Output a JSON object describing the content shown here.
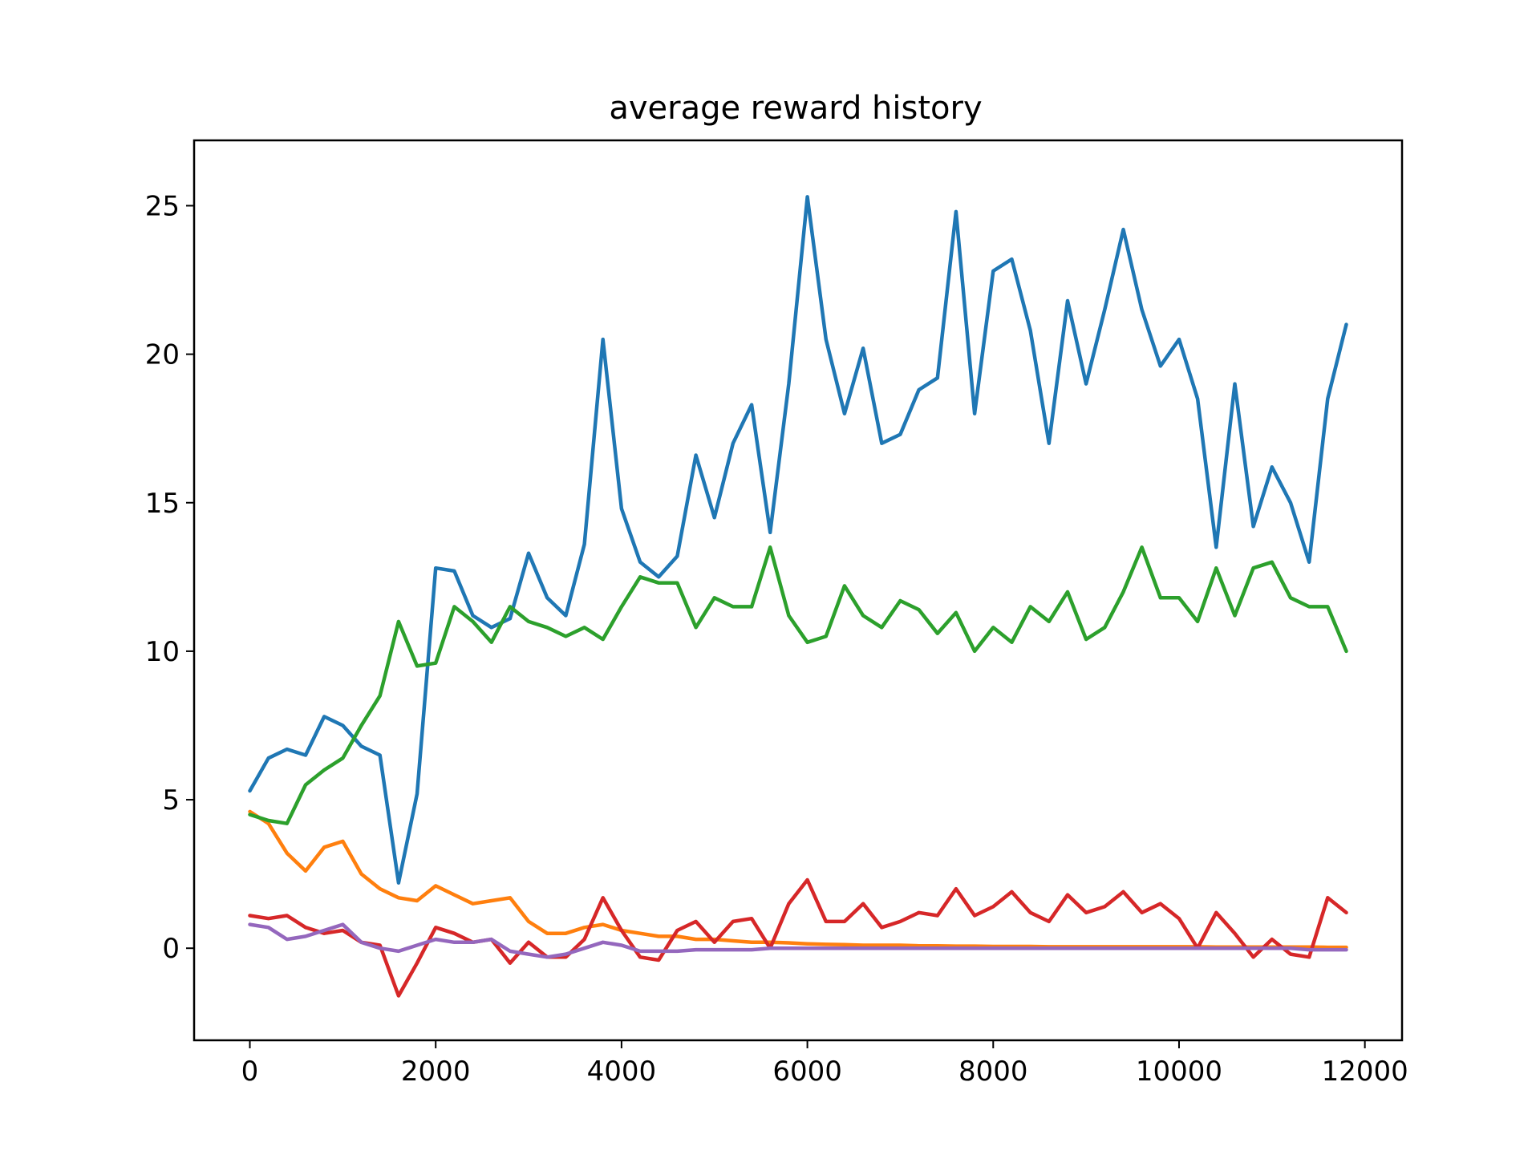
{
  "chart_data": {
    "type": "line",
    "title": "average reward history",
    "xlabel": "",
    "ylabel": "",
    "xlim": [
      -600,
      12400
    ],
    "ylim": [
      -3.1,
      27.2
    ],
    "grid": false,
    "x_ticks": [
      0,
      2000,
      4000,
      6000,
      8000,
      10000,
      12000
    ],
    "x_tick_labels": [
      "0",
      "2000",
      "4000",
      "6000",
      "8000",
      "10000",
      "12000"
    ],
    "y_ticks": [
      0,
      5,
      10,
      15,
      20,
      25
    ],
    "y_tick_labels": [
      "0",
      "5",
      "10",
      "15",
      "20",
      "25"
    ],
    "x": [
      0,
      200,
      400,
      600,
      800,
      1000,
      1200,
      1400,
      1600,
      1800,
      2000,
      2200,
      2400,
      2600,
      2800,
      3000,
      3200,
      3400,
      3600,
      3800,
      4000,
      4200,
      4400,
      4600,
      4800,
      5000,
      5200,
      5400,
      5600,
      5800,
      6000,
      6200,
      6400,
      6600,
      6800,
      7000,
      7200,
      7400,
      7600,
      7800,
      8000,
      8200,
      8400,
      8600,
      8800,
      9000,
      9200,
      9400,
      9600,
      9800,
      10000,
      10200,
      10400,
      10600,
      10800,
      11000,
      11200,
      11400,
      11600,
      11800
    ],
    "series": [
      {
        "color": "#1f77b4",
        "values": [
          5.3,
          6.4,
          6.7,
          6.5,
          7.8,
          7.5,
          6.8,
          6.5,
          2.2,
          5.2,
          12.8,
          12.7,
          11.2,
          10.8,
          11.1,
          13.3,
          11.8,
          11.2,
          13.6,
          20.5,
          14.8,
          13.0,
          12.5,
          13.2,
          16.6,
          14.5,
          17.0,
          18.3,
          14.0,
          19.0,
          25.3,
          20.5,
          18.0,
          20.2,
          17.0,
          17.3,
          18.8,
          19.2,
          24.8,
          18.0,
          22.8,
          23.2,
          20.8,
          17.0,
          21.8,
          19.0,
          21.5,
          24.2,
          21.5,
          19.6,
          20.5,
          18.5,
          13.5,
          19.0,
          14.2,
          16.2,
          15.0,
          13.0,
          18.5,
          21.0
        ]
      },
      {
        "color": "#ff7f0e",
        "values": [
          4.6,
          4.2,
          3.2,
          2.6,
          3.4,
          3.6,
          2.5,
          2.0,
          1.7,
          1.6,
          2.1,
          1.8,
          1.5,
          1.6,
          1.7,
          0.9,
          0.5,
          0.5,
          0.7,
          0.8,
          0.6,
          0.5,
          0.4,
          0.4,
          0.3,
          0.3,
          0.25,
          0.2,
          0.2,
          0.18,
          0.15,
          0.13,
          0.12,
          0.1,
          0.1,
          0.1,
          0.08,
          0.08,
          0.07,
          0.07,
          0.06,
          0.06,
          0.06,
          0.05,
          0.05,
          0.05,
          0.05,
          0.05,
          0.05,
          0.05,
          0.05,
          0.05,
          0.04,
          0.04,
          0.04,
          0.04,
          0.04,
          0.04,
          0.03,
          0.03
        ]
      },
      {
        "color": "#2ca02c",
        "values": [
          4.5,
          4.3,
          4.2,
          5.5,
          6.0,
          6.4,
          7.5,
          8.5,
          11.0,
          9.5,
          9.6,
          11.5,
          11.0,
          10.3,
          11.5,
          11.0,
          10.8,
          10.5,
          10.8,
          10.4,
          11.5,
          12.5,
          12.3,
          12.3,
          10.8,
          11.8,
          11.5,
          11.5,
          13.5,
          11.2,
          10.3,
          10.5,
          12.2,
          11.2,
          10.8,
          11.7,
          11.4,
          10.6,
          11.3,
          10.0,
          10.8,
          10.3,
          11.5,
          11.0,
          12.0,
          10.4,
          10.8,
          12.0,
          13.5,
          11.8,
          11.8,
          11.0,
          12.8,
          11.2,
          12.8,
          13.0,
          11.8,
          11.5,
          11.5,
          10.0
        ]
      },
      {
        "color": "#d62728",
        "values": [
          1.1,
          1.0,
          1.1,
          0.7,
          0.5,
          0.6,
          0.2,
          0.1,
          -1.6,
          -0.5,
          0.7,
          0.5,
          0.2,
          0.3,
          -0.5,
          0.2,
          -0.3,
          -0.3,
          0.3,
          1.7,
          0.6,
          -0.3,
          -0.4,
          0.6,
          0.9,
          0.2,
          0.9,
          1.0,
          0.0,
          1.5,
          2.3,
          0.9,
          0.9,
          1.5,
          0.7,
          0.9,
          1.2,
          1.1,
          2.0,
          1.1,
          1.4,
          1.9,
          1.2,
          0.9,
          1.8,
          1.2,
          1.4,
          1.9,
          1.2,
          1.5,
          1.0,
          0.0,
          1.2,
          0.5,
          -0.3,
          0.3,
          -0.2,
          -0.3,
          1.7,
          1.2
        ]
      },
      {
        "color": "#9467bd",
        "values": [
          0.8,
          0.7,
          0.3,
          0.4,
          0.6,
          0.8,
          0.2,
          0.0,
          -0.1,
          0.1,
          0.3,
          0.2,
          0.2,
          0.3,
          -0.1,
          -0.2,
          -0.3,
          -0.2,
          0.0,
          0.2,
          0.1,
          -0.1,
          -0.1,
          -0.1,
          -0.05,
          -0.05,
          -0.05,
          -0.05,
          0.0,
          0.0,
          0.0,
          0.0,
          0.0,
          0.0,
          0.0,
          0.0,
          0.0,
          0.0,
          0.0,
          0.0,
          0.0,
          0.0,
          0.0,
          0.0,
          0.0,
          0.0,
          0.0,
          0.0,
          0.0,
          0.0,
          0.0,
          0.0,
          0.0,
          0.0,
          0.0,
          0.0,
          0.0,
          -0.05,
          -0.05,
          -0.05
        ]
      }
    ]
  }
}
